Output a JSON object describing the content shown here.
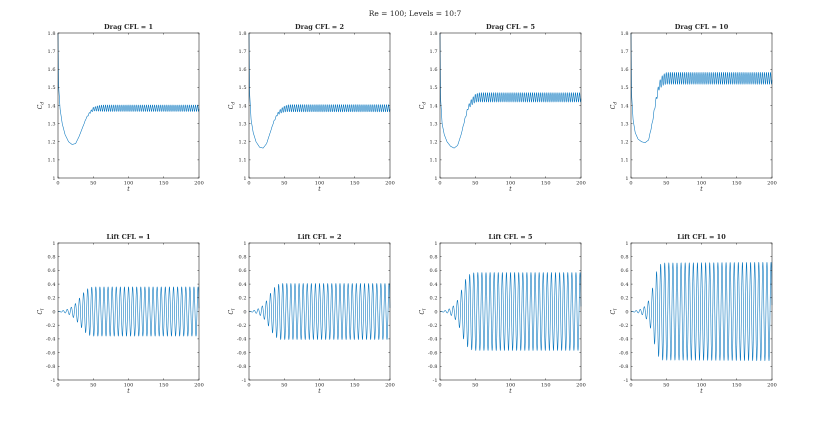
{
  "figure": {
    "suptitle": "Re = 100; Levels = 10:7"
  },
  "chart_data": [
    {
      "type": "line",
      "title": "Drag CFL = 1",
      "xlabel": "t",
      "ylabel": "C_d",
      "xlim": [
        0,
        200
      ],
      "ylim": [
        1,
        1.8
      ],
      "xticks": [
        0,
        50,
        100,
        150,
        200
      ],
      "yticks": [
        1,
        1.1,
        1.2,
        1.3,
        1.4,
        1.5,
        1.6,
        1.7,
        1.8
      ],
      "series": [
        {
          "color": "#0072BD",
          "x": [
            0,
            1,
            3,
            6,
            10,
            15,
            20,
            25,
            30,
            35,
            40,
            45,
            50,
            55,
            60,
            65,
            70,
            200
          ],
          "y": [
            1.8,
            1.5,
            1.38,
            1.3,
            1.24,
            1.2,
            1.185,
            1.19,
            1.23,
            1.28,
            1.33,
            1.36,
            1.38,
            1.383,
            1.385,
            1.385,
            1.385,
            1.385
          ],
          "osc_amplitude": [
            0,
            0,
            0,
            0,
            0,
            0,
            0,
            0,
            0,
            0,
            0.002,
            0.005,
            0.01,
            0.014,
            0.017,
            0.018,
            0.018,
            0.018
          ],
          "osc_period": 2.9
        }
      ]
    },
    {
      "type": "line",
      "title": "Drag CFL = 2",
      "xlabel": "t",
      "ylabel": "C_d",
      "xlim": [
        0,
        200
      ],
      "ylim": [
        1,
        1.8
      ],
      "xticks": [
        0,
        50,
        100,
        150,
        200
      ],
      "yticks": [
        1,
        1.1,
        1.2,
        1.3,
        1.4,
        1.5,
        1.6,
        1.7,
        1.8
      ],
      "series": [
        {
          "color": "#0072BD",
          "x": [
            0,
            1,
            3,
            6,
            10,
            15,
            20,
            25,
            30,
            35,
            40,
            45,
            50,
            55,
            60,
            65,
            200
          ],
          "y": [
            1.8,
            1.46,
            1.32,
            1.25,
            1.2,
            1.17,
            1.165,
            1.19,
            1.25,
            1.31,
            1.35,
            1.37,
            1.38,
            1.385,
            1.385,
            1.385,
            1.385
          ],
          "osc_amplitude": [
            0,
            0,
            0,
            0,
            0,
            0,
            0,
            0,
            0,
            0.002,
            0.006,
            0.012,
            0.016,
            0.019,
            0.02,
            0.02,
            0.02
          ],
          "osc_period": 2.9
        }
      ]
    },
    {
      "type": "line",
      "title": "Drag CFL = 5",
      "xlabel": "t",
      "ylabel": "C_d",
      "xlim": [
        0,
        200
      ],
      "ylim": [
        1,
        1.8
      ],
      "xticks": [
        0,
        50,
        100,
        150,
        200
      ],
      "yticks": [
        1,
        1.1,
        1.2,
        1.3,
        1.4,
        1.5,
        1.6,
        1.7,
        1.8
      ],
      "series": [
        {
          "color": "#0072BD",
          "x": [
            0,
            1,
            3,
            6,
            10,
            15,
            20,
            25,
            30,
            35,
            40,
            45,
            50,
            55,
            60,
            200
          ],
          "y": [
            1.8,
            1.43,
            1.3,
            1.24,
            1.2,
            1.175,
            1.165,
            1.18,
            1.24,
            1.32,
            1.39,
            1.42,
            1.44,
            1.445,
            1.445,
            1.445
          ],
          "osc_amplitude": [
            0,
            0,
            0,
            0,
            0,
            0,
            0,
            0,
            0,
            0.004,
            0.01,
            0.018,
            0.022,
            0.025,
            0.026,
            0.026
          ],
          "osc_period": 2.9
        }
      ]
    },
    {
      "type": "line",
      "title": "Drag CFL = 10",
      "xlabel": "t",
      "ylabel": "C_d",
      "xlim": [
        0,
        200
      ],
      "ylim": [
        1,
        1.8
      ],
      "xticks": [
        0,
        50,
        100,
        150,
        200
      ],
      "yticks": [
        1,
        1.1,
        1.2,
        1.3,
        1.4,
        1.5,
        1.6,
        1.7,
        1.8
      ],
      "series": [
        {
          "color": "#0072BD",
          "x": [
            0,
            1,
            3,
            6,
            10,
            15,
            20,
            25,
            30,
            35,
            40,
            45,
            50,
            55,
            200
          ],
          "y": [
            1.8,
            1.45,
            1.32,
            1.25,
            1.215,
            1.2,
            1.195,
            1.21,
            1.3,
            1.42,
            1.51,
            1.54,
            1.55,
            1.55,
            1.55
          ],
          "osc_amplitude": [
            0,
            0,
            0,
            0,
            0,
            0,
            0,
            0,
            0.005,
            0.012,
            0.022,
            0.03,
            0.032,
            0.033,
            0.033
          ],
          "osc_period": 2.9
        }
      ]
    },
    {
      "type": "line",
      "title": "Lift CFL = 1",
      "xlabel": "t",
      "ylabel": "C_l",
      "xlim": [
        0,
        200
      ],
      "ylim": [
        -1,
        1
      ],
      "xticks": [
        0,
        50,
        100,
        150,
        200
      ],
      "yticks": [
        -1,
        -0.8,
        -0.6,
        -0.4,
        -0.2,
        0,
        0.2,
        0.4,
        0.6,
        0.8,
        1
      ],
      "series": [
        {
          "color": "#0072BD",
          "x": [
            0,
            5,
            10,
            15,
            20,
            25,
            30,
            35,
            40,
            45,
            50,
            55,
            60,
            200
          ],
          "y": [
            0,
            0,
            0,
            0,
            0,
            0,
            0,
            0,
            0,
            0,
            0,
            0,
            0,
            0
          ],
          "osc_amplitude": [
            0,
            0.01,
            0.02,
            0.04,
            0.07,
            0.12,
            0.19,
            0.26,
            0.32,
            0.35,
            0.36,
            0.36,
            0.36,
            0.36
          ],
          "osc_period": 5.8
        }
      ]
    },
    {
      "type": "line",
      "title": "Lift CFL = 2",
      "xlabel": "t",
      "ylabel": "C_l",
      "xlim": [
        0,
        200
      ],
      "ylim": [
        -1,
        1
      ],
      "xticks": [
        0,
        50,
        100,
        150,
        200
      ],
      "yticks": [
        -1,
        -0.8,
        -0.6,
        -0.4,
        -0.2,
        0,
        0.2,
        0.4,
        0.6,
        0.8,
        1
      ],
      "series": [
        {
          "color": "#0072BD",
          "x": [
            0,
            5,
            10,
            15,
            20,
            25,
            30,
            35,
            40,
            45,
            50,
            55,
            200
          ],
          "y": [
            0,
            0,
            0,
            0,
            0,
            0,
            0,
            0,
            0,
            0,
            0,
            0,
            0
          ],
          "osc_amplitude": [
            0,
            0.01,
            0.025,
            0.05,
            0.09,
            0.16,
            0.26,
            0.34,
            0.39,
            0.41,
            0.41,
            0.41,
            0.41
          ],
          "osc_period": 5.8
        }
      ]
    },
    {
      "type": "line",
      "title": "Lift CFL = 5",
      "xlabel": "t",
      "ylabel": "C_l",
      "xlim": [
        0,
        200
      ],
      "ylim": [
        -1,
        1
      ],
      "xticks": [
        0,
        50,
        100,
        150,
        200
      ],
      "yticks": [
        -1,
        -0.8,
        -0.6,
        -0.4,
        -0.2,
        0,
        0.2,
        0.4,
        0.6,
        0.8,
        1
      ],
      "series": [
        {
          "color": "#0072BD",
          "x": [
            0,
            5,
            10,
            15,
            20,
            25,
            30,
            35,
            40,
            45,
            50,
            55,
            200
          ],
          "y": [
            0,
            0,
            0,
            0,
            0,
            0,
            0,
            0,
            0,
            0,
            0,
            0,
            0
          ],
          "osc_amplitude": [
            0,
            0.01,
            0.02,
            0.05,
            0.09,
            0.17,
            0.3,
            0.45,
            0.53,
            0.56,
            0.57,
            0.57,
            0.57
          ],
          "osc_period": 5.8
        }
      ]
    },
    {
      "type": "line",
      "title": "Lift CFL = 10",
      "xlabel": "t",
      "ylabel": "C_l",
      "xlim": [
        0,
        200
      ],
      "ylim": [
        -1,
        1
      ],
      "xticks": [
        0,
        50,
        100,
        150,
        200
      ],
      "yticks": [
        -1,
        -0.8,
        -0.6,
        -0.4,
        -0.2,
        0,
        0.2,
        0.4,
        0.6,
        0.8,
        1
      ],
      "series": [
        {
          "color": "#0072BD",
          "x": [
            0,
            5,
            10,
            15,
            20,
            25,
            30,
            35,
            40,
            45,
            200
          ],
          "y": [
            0,
            0,
            0,
            0,
            0,
            0,
            0,
            0,
            0,
            0,
            0
          ],
          "osc_amplitude": [
            0,
            0.01,
            0.02,
            0.04,
            0.08,
            0.16,
            0.32,
            0.55,
            0.68,
            0.71,
            0.72
          ],
          "osc_period": 5.8
        }
      ]
    }
  ]
}
